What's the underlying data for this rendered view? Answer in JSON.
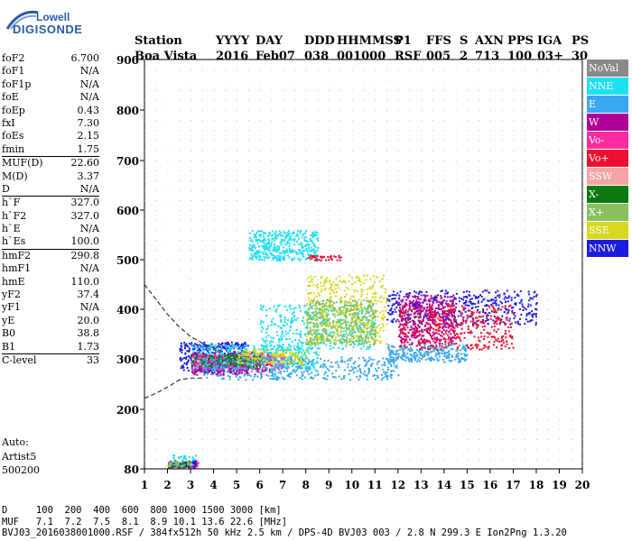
{
  "logo": {
    "line1": "Lowell",
    "line2": "DIGISONDE"
  },
  "header": {
    "labels": [
      "Station",
      "YYYY",
      "DAY",
      "DDD",
      "HHMMSS",
      "P1",
      "FFS",
      "S",
      "AXN",
      "PPS",
      "IGA",
      "PS"
    ],
    "values": [
      "Boa Vista",
      "2016",
      "Feb07",
      "038",
      "001000",
      "RSF",
      "005",
      "2",
      "713",
      "100",
      "03+",
      "30"
    ]
  },
  "params": [
    {
      "name": "foF2",
      "value": "6.700"
    },
    {
      "name": "foF1",
      "value": "N/A"
    },
    {
      "name": "foF1p",
      "value": "N/A"
    },
    {
      "name": "foE",
      "value": "N/A"
    },
    {
      "name": "foEp",
      "value": "0.43"
    },
    {
      "name": "fxI",
      "value": "7.30"
    },
    {
      "name": "foEs",
      "value": "2.15"
    },
    {
      "name": "fmin",
      "value": "1.75"
    },
    {
      "name": "MUF(D)",
      "value": "22.60",
      "sep": true
    },
    {
      "name": "M(D)",
      "value": "3.37"
    },
    {
      "name": "D",
      "value": "N/A"
    },
    {
      "name": "h`F",
      "value": "327.0",
      "sep": true
    },
    {
      "name": "h`F2",
      "value": "327.0"
    },
    {
      "name": "h`E",
      "value": "N/A"
    },
    {
      "name": "h`Es",
      "value": "100.0"
    },
    {
      "name": "hmF2",
      "value": "290.8",
      "sep": true
    },
    {
      "name": "hmF1",
      "value": "N/A"
    },
    {
      "name": "hmE",
      "value": "110.0"
    },
    {
      "name": "yF2",
      "value": "37.4"
    },
    {
      "name": "yF1",
      "value": "N/A"
    },
    {
      "name": "yE",
      "value": "20.0"
    },
    {
      "name": "B0",
      "value": "38.8"
    },
    {
      "name": "B1",
      "value": "1.73"
    },
    {
      "name": "C-level",
      "value": "33",
      "sep": true
    }
  ],
  "auto": {
    "line1": "Auto:",
    "line2": "Artist5",
    "line3": "500200"
  },
  "legend": [
    {
      "label": "NoVal",
      "color": "#8a8a8a"
    },
    {
      "label": "NNE",
      "color": "#1ee0f0"
    },
    {
      "label": "E",
      "color": "#3aa8f0"
    },
    {
      "label": "W",
      "color": "#b0009a"
    },
    {
      "label": "Vo-",
      "color": "#ff2ca0"
    },
    {
      "label": "Vo+",
      "color": "#ee1030"
    },
    {
      "label": "SSW",
      "color": "#f4a4a4"
    },
    {
      "label": "X-",
      "color": "#0a7a10"
    },
    {
      "label": "X+",
      "color": "#88c060"
    },
    {
      "label": "SSE",
      "color": "#d8d820"
    },
    {
      "label": "NNW",
      "color": "#1c1ce0"
    }
  ],
  "footer": {
    "d_row": "D     100  200  400  600  800 1000 1500 3000 [km]",
    "muf_row": "MUF   7.1  7.2  7.5  8.1  8.9 10.1 13.6 22.6 [MHz]",
    "info": "BVJ03_2016038001000.RSF / 384fx512h 50 kHz 2.5 km / DPS-4D BVJ03 003 / 2.8 N 299.3 E Ion2Png 1.3.20"
  },
  "chart_data": {
    "type": "scatter",
    "title": "",
    "xlabel": "",
    "ylabel": "",
    "xlim": [
      1,
      20
    ],
    "ylim": [
      80,
      900
    ],
    "xticks": [
      1,
      2,
      3,
      4,
      5,
      6,
      7,
      8,
      9,
      10,
      11,
      12,
      13,
      14,
      15,
      16,
      17,
      18,
      19,
      20
    ],
    "yticks": [
      80,
      200,
      300,
      400,
      500,
      600,
      700,
      800,
      900
    ],
    "grid": true,
    "legend_position": "right",
    "fitted_profile_curve": [
      [
        1.0,
        450
      ],
      [
        1.5,
        420
      ],
      [
        2.0,
        390
      ],
      [
        2.5,
        365
      ],
      [
        3.0,
        345
      ],
      [
        3.5,
        332
      ],
      [
        4.0,
        322
      ],
      [
        4.5,
        313
      ]
    ],
    "fitted_lower_curve": [
      [
        1.0,
        222
      ],
      [
        1.5,
        232
      ],
      [
        2.0,
        244
      ],
      [
        2.5,
        258
      ],
      [
        3.0,
        262
      ],
      [
        3.5,
        262
      ]
    ],
    "clusters": [
      {
        "name": "Es",
        "series": "W",
        "x": [
          2.0,
          3.2
        ],
        "y": [
          84,
          98
        ]
      },
      {
        "name": "Es",
        "series": "Vo-",
        "x": [
          2.0,
          3.4
        ],
        "y": [
          84,
          98
        ]
      },
      {
        "name": "Es",
        "series": "NNE",
        "x": [
          2.2,
          3.2
        ],
        "y": [
          86,
          110
        ]
      },
      {
        "name": "Es",
        "series": "X-",
        "x": [
          2.0,
          3.0
        ],
        "y": [
          84,
          96
        ]
      },
      {
        "name": "Es",
        "series": "NNW",
        "x": [
          2.0,
          3.2
        ],
        "y": [
          84,
          98
        ]
      },
      {
        "name": "Es",
        "series": "X+",
        "x": [
          2.0,
          3.0
        ],
        "y": [
          86,
          96
        ]
      },
      {
        "name": "F-main",
        "series": "NNW",
        "x": [
          2.5,
          5.5
        ],
        "y": [
          275,
          335
        ]
      },
      {
        "name": "F-main",
        "series": "W",
        "x": [
          3.0,
          6.5
        ],
        "y": [
          270,
          315
        ]
      },
      {
        "name": "F-main",
        "series": "NNE",
        "x": [
          3.0,
          8.5
        ],
        "y": [
          280,
          330
        ]
      },
      {
        "name": "F-main",
        "series": "Vo-",
        "x": [
          3.0,
          7.0
        ],
        "y": [
          280,
          310
        ]
      },
      {
        "name": "F-main",
        "series": "X-",
        "x": [
          3.0,
          6.0
        ],
        "y": [
          285,
          310
        ]
      },
      {
        "name": "F-main",
        "series": "SSE",
        "x": [
          5.0,
          8.0
        ],
        "y": [
          290,
          320
        ]
      },
      {
        "name": "F-ordinary",
        "series": "E",
        "x": [
          3.5,
          12.0
        ],
        "y": [
          260,
          305
        ]
      },
      {
        "name": "F-extra",
        "series": "E",
        "x": [
          11.5,
          15.0
        ],
        "y": [
          295,
          330
        ]
      },
      {
        "name": "F-spread",
        "series": "NNE",
        "x": [
          6.0,
          11.0
        ],
        "y": [
          320,
          410
        ]
      },
      {
        "name": "F-spread",
        "series": "SSE",
        "x": [
          8.0,
          11.5
        ],
        "y": [
          330,
          470
        ]
      },
      {
        "name": "F-spread",
        "series": "X+",
        "x": [
          8.0,
          11.0
        ],
        "y": [
          330,
          420
        ]
      },
      {
        "name": "F-spread",
        "series": "NNW",
        "x": [
          11.5,
          18.0
        ],
        "y": [
          370,
          440
        ]
      },
      {
        "name": "F-spread",
        "series": "W",
        "x": [
          12.0,
          14.5
        ],
        "y": [
          330,
          430
        ]
      },
      {
        "name": "F-spread",
        "series": "Vo+",
        "x": [
          12.0,
          17.0
        ],
        "y": [
          320,
          410
        ]
      },
      {
        "name": "multi",
        "series": "NNE",
        "x": [
          5.5,
          8.5
        ],
        "y": [
          500,
          560
        ]
      },
      {
        "name": "multi",
        "series": "Vo+",
        "x": [
          8.0,
          9.5
        ],
        "y": [
          500,
          510
        ]
      }
    ]
  }
}
